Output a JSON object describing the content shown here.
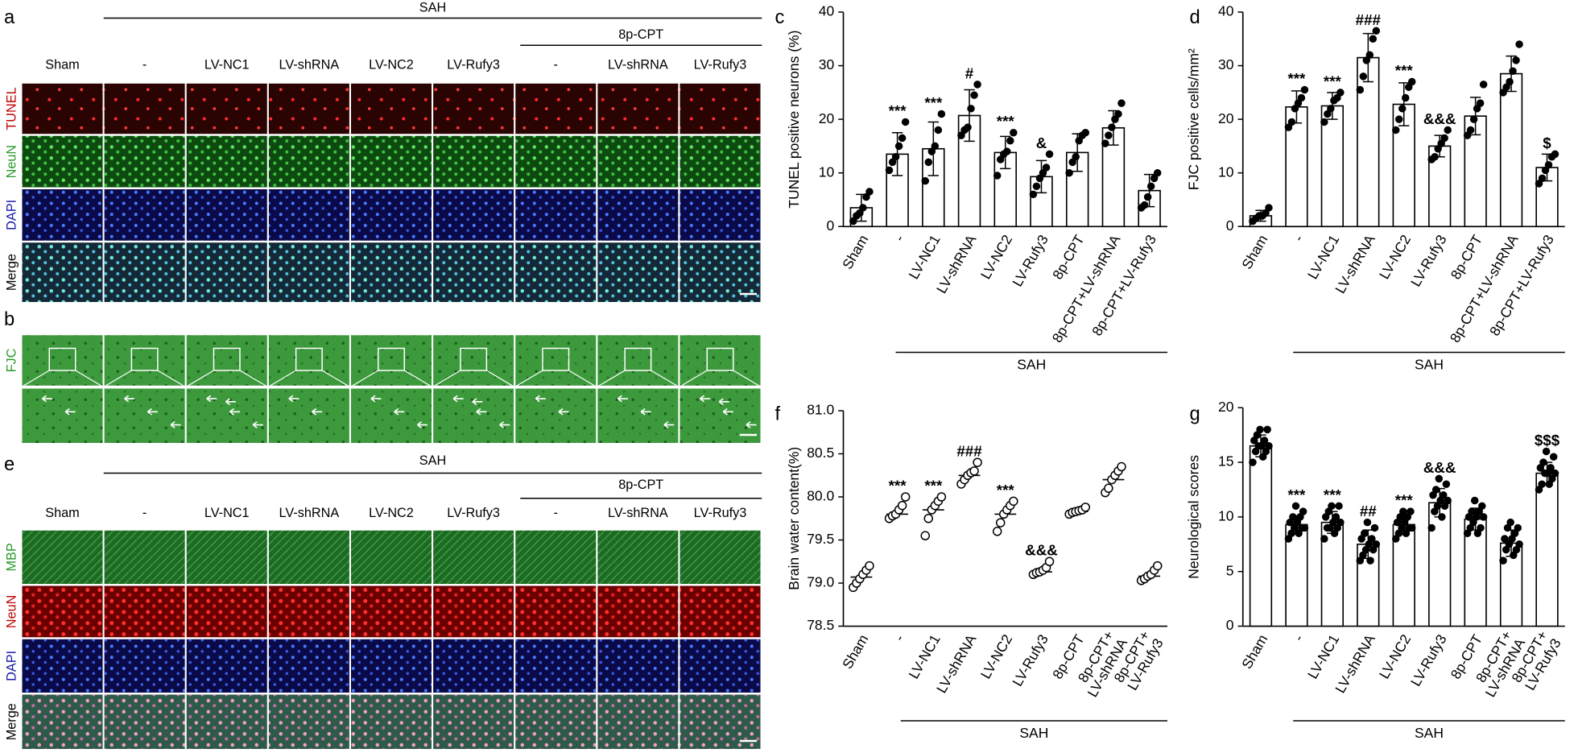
{
  "chart_data": [
    {
      "type": "bar",
      "panel_label": "c",
      "ylabel": "TUNEL positive neurons (%)",
      "group_label": "SAH",
      "categories": [
        "Sham",
        "-",
        "LV-NC1",
        "LV-shRNA",
        "LV-NC2",
        "LV-Rufy3",
        "8p-CPT",
        "8p-CPT+LV-shRNA",
        "8p-CPT+LV-Rufy3"
      ],
      "values": [
        3.5,
        13.5,
        14.5,
        20.7,
        13.8,
        9.3,
        13.8,
        18.4,
        6.7
      ],
      "errors": [
        2.5,
        4,
        5,
        4.8,
        3,
        3,
        3.5,
        3.2,
        3
      ],
      "points": [
        [
          1,
          2,
          2.5,
          3.5,
          5.5,
          6.5
        ],
        [
          10.5,
          12,
          13,
          15,
          16.5,
          19.5
        ],
        [
          8.5,
          12,
          14,
          15,
          18,
          21
        ],
        [
          17,
          18,
          18.5,
          22,
          24.5,
          26.5
        ],
        [
          9.5,
          12.5,
          13.5,
          14,
          16,
          17.5
        ],
        [
          6,
          7.5,
          9,
          10,
          11,
          13.5
        ],
        [
          10,
          12,
          13,
          16,
          17,
          17.5
        ],
        [
          15.5,
          17,
          18.5,
          20,
          21,
          23
        ],
        [
          3.5,
          4,
          5.5,
          7.5,
          9,
          10
        ]
      ],
      "annotations": [
        null,
        "***",
        "***",
        "#",
        "***",
        "&",
        null,
        null,
        null
      ],
      "color": "#000000",
      "ylim": [
        0,
        40
      ],
      "yticks": [
        0,
        10,
        20,
        30,
        40
      ]
    },
    {
      "type": "bar",
      "panel_label": "d",
      "ylabel": "FJC positive cells/mm²",
      "group_label": "SAH",
      "categories": [
        "Sham",
        "-",
        "LV-NC1",
        "LV-shRNA",
        "LV-NC2",
        "LV-Rufy3",
        "8p-CPT",
        "8p-CPT+LV-shRNA",
        "8p-CPT+LV-Rufy3"
      ],
      "values": [
        2,
        22.3,
        22.5,
        31.5,
        22.8,
        15,
        20.6,
        28.5,
        11
      ],
      "errors": [
        1,
        3,
        2.5,
        4.5,
        4,
        2,
        3.5,
        3.3,
        2.5
      ],
      "points": [
        [
          1,
          1.5,
          2,
          2,
          2.5,
          3.5
        ],
        [
          18.5,
          19.5,
          22,
          23,
          24,
          25.5
        ],
        [
          19.5,
          21,
          22,
          23.5,
          24,
          25
        ],
        [
          25.5,
          28,
          31,
          32,
          35,
          36.5
        ],
        [
          18,
          20,
          22,
          24,
          26,
          27
        ],
        [
          12.5,
          13,
          14.5,
          15.5,
          16.5,
          18
        ],
        [
          17,
          18,
          20,
          22,
          23,
          26.5
        ],
        [
          25,
          26,
          27,
          29,
          31,
          34
        ],
        [
          8,
          9,
          10.5,
          11.5,
          13,
          13.5
        ]
      ],
      "annotations": [
        null,
        "***",
        "***",
        "###",
        "***",
        "&&&",
        null,
        null,
        "$"
      ],
      "color": "#000000",
      "ylim": [
        0,
        40
      ],
      "yticks": [
        0,
        10,
        20,
        30,
        40
      ]
    },
    {
      "type": "scatter",
      "panel_label": "f",
      "ylabel": "Brain water content(%)",
      "group_label": "SAH",
      "categories": [
        "Sham",
        "-",
        "LV-NC1",
        "LV-shRNA",
        "LV-NC2",
        "LV-Rufy3",
        "8p-CPT",
        "8p-CPT+\nLV-shRNA",
        "8p-CPT+\nLV-Rufy3"
      ],
      "values": [
        79.07,
        79.8,
        79.85,
        80.25,
        79.8,
        79.13,
        79.83,
        80.2,
        79.08
      ],
      "points": [
        [
          78.95,
          79,
          79.05,
          79.1,
          79.15,
          79.2
        ],
        [
          79.75,
          79.78,
          79.8,
          79.85,
          79.9,
          80
        ],
        [
          79.55,
          79.75,
          79.85,
          79.9,
          79.95,
          80
        ],
        [
          80.15,
          80.2,
          80.25,
          80.28,
          80.3,
          80.4
        ],
        [
          79.6,
          79.7,
          79.8,
          79.85,
          79.9,
          79.95
        ],
        [
          79.1,
          79.12,
          79.13,
          79.15,
          79.18,
          79.25
        ],
        [
          79.8,
          79.82,
          79.83,
          79.84,
          79.85,
          79.88
        ],
        [
          80.05,
          80.1,
          80.2,
          80.25,
          80.3,
          80.35
        ],
        [
          79.03,
          79.05,
          79.08,
          79.1,
          79.15,
          79.2
        ]
      ],
      "annotations": [
        null,
        "***",
        "***",
        "###",
        "***",
        "&&&",
        null,
        null,
        null
      ],
      "color": "#000000",
      "ylim": [
        78.5,
        81
      ],
      "yticks": [
        78.5,
        {
          "value": 79,
          "label": "79.0"
        },
        79.5,
        {
          "value": 80,
          "label": "80.0"
        },
        80.5,
        {
          "value": 81,
          "label": "81.0"
        }
      ]
    },
    {
      "type": "bar",
      "panel_label": "g",
      "ylabel": "Neurological  scores",
      "group_label": "SAH",
      "categories": [
        "Sham",
        "-",
        "LV-NC1",
        "LV-shRNA",
        "LV-NC2",
        "LV-Rufy3",
        "8p-CPT",
        "8p-CPT+\nLV-shRNA",
        "8p-CPT+\nLV-Rufy3"
      ],
      "values": [
        16.5,
        9.3,
        9.5,
        7.5,
        9.3,
        11.3,
        9.8,
        7.6,
        14
      ],
      "errors": [
        1,
        0.8,
        1,
        1.3,
        0.9,
        1.3,
        1,
        1.2,
        1
      ],
      "points": [
        [
          15,
          15.5,
          16,
          16,
          16.5,
          16.5,
          16.5,
          17,
          17,
          17.5,
          18,
          18
        ],
        [
          8,
          8.5,
          8.5,
          9,
          9,
          9,
          9.5,
          9.5,
          10,
          10,
          10.5,
          11
        ],
        [
          8,
          8.5,
          9,
          9,
          9,
          9.5,
          9.5,
          10,
          10,
          10.5,
          11,
          11
        ],
        [
          6,
          6,
          6.5,
          7,
          7,
          7.5,
          7.5,
          8,
          8,
          8.5,
          9,
          9.5
        ],
        [
          8,
          8.5,
          8.5,
          9,
          9,
          9,
          9.5,
          9.5,
          10,
          10,
          10.5,
          10.5
        ],
        [
          9,
          10,
          10.5,
          11,
          11,
          11.5,
          11.5,
          12,
          12,
          12.5,
          13,
          13.5
        ],
        [
          8.5,
          8.5,
          9,
          9,
          9.5,
          10,
          10,
          10,
          10.5,
          10.5,
          11,
          11.5
        ],
        [
          6,
          6.5,
          7,
          7,
          7.5,
          7.5,
          8,
          8,
          8.5,
          9,
          9,
          9.5
        ],
        [
          12.5,
          13,
          13,
          13.5,
          14,
          14,
          14,
          14.5,
          14.5,
          15,
          15.5,
          16
        ]
      ],
      "annotations": [
        null,
        "***",
        "***",
        "##",
        "***",
        "&&&",
        null,
        null,
        "$$$"
      ],
      "color": "#000000",
      "ylim": [
        0,
        20
      ],
      "yticks": [
        0,
        5,
        10,
        15,
        20
      ]
    }
  ],
  "image_panels": {
    "a": {
      "label": "a",
      "group": "SAH",
      "subgroup": "8p-CPT",
      "columns": [
        "Sham",
        "-",
        "LV-NC1",
        "LV-shRNA",
        "LV-NC2",
        "LV-Rufy3",
        "-",
        "LV-shRNA",
        "LV-Rufy3"
      ],
      "rows": [
        "TUNEL",
        "NeuN",
        "DAPI",
        "Merge"
      ],
      "row_colors": [
        "#c00000",
        "#2a9a2a",
        "#1a1aaa",
        "#000000"
      ]
    },
    "b": {
      "label": "b",
      "rows": [
        "FJC"
      ],
      "row_colors": [
        "#2a9a2a"
      ]
    },
    "e": {
      "label": "e",
      "group": "SAH",
      "subgroup": "8p-CPT",
      "columns": [
        "Sham",
        "-",
        "LV-NC1",
        "LV-shRNA",
        "LV-NC2",
        "LV-Rufy3",
        "-",
        "LV-shRNA",
        "LV-Rufy3"
      ],
      "rows": [
        "MBP",
        "NeuN",
        "DAPI",
        "Merge"
      ],
      "row_colors": [
        "#2a9a2a",
        "#c00000",
        "#1a1aaa",
        "#000000"
      ]
    }
  }
}
